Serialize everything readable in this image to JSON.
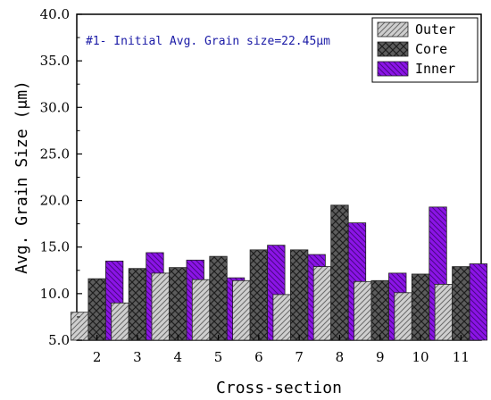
{
  "chart_data": {
    "type": "bar",
    "title": "",
    "xlabel": "Cross-section",
    "ylabel": "Avg. Grain Size (μm)",
    "annotation": "#1- Initial Avg. Grain size=22.45μm",
    "categories": [
      "2",
      "3",
      "4",
      "5",
      "6",
      "7",
      "8",
      "9",
      "10",
      "11"
    ],
    "ylim": [
      5.0,
      40.0
    ],
    "yticks": [
      "5.0",
      "10.0",
      "15.0",
      "20.0",
      "25.0",
      "30.0",
      "35.0",
      "40.0"
    ],
    "ytick_values": [
      5,
      10,
      15,
      20,
      25,
      30,
      35,
      40
    ],
    "legend_position": "top-right",
    "grid": false,
    "series": [
      {
        "name": "Outer",
        "color": "#c8c8c8",
        "pattern": "diagonal-lines",
        "values": [
          8.0,
          9.0,
          12.2,
          11.5,
          11.4,
          9.9,
          12.9,
          11.3,
          10.1,
          11.0
        ]
      },
      {
        "name": "Core",
        "color": "#5a5a5a",
        "pattern": "crosshatch",
        "values": [
          11.6,
          12.7,
          12.8,
          14.0,
          14.7,
          14.7,
          19.5,
          11.4,
          12.1,
          12.9
        ]
      },
      {
        "name": "Inner",
        "color": "#8a12e0",
        "pattern": "diagonal-lines",
        "values": [
          13.5,
          14.4,
          13.6,
          11.7,
          15.2,
          14.2,
          17.6,
          12.2,
          19.3,
          13.2
        ]
      }
    ]
  }
}
